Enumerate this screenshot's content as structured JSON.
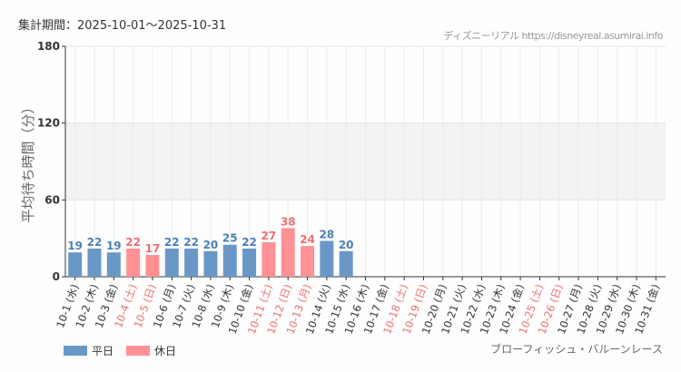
{
  "header": {
    "period": "集計期間：2025-10-01～2025-10-31",
    "credit": "ディズニーリアル https://disneyreal.asumirai.info"
  },
  "attraction": "ブローフィッシュ・バルーンレース",
  "legend": [
    {
      "label": "平日",
      "color": "#6a98c6"
    },
    {
      "label": "休日",
      "color": "#ff9195"
    }
  ],
  "chart_data": {
    "type": "bar",
    "ylabel": "平均待ち時間（分）",
    "ylim": [
      0,
      180
    ],
    "yticks": [
      0,
      60,
      120,
      180
    ],
    "grid": true,
    "categories": [
      "10-1 (水)",
      "10-2 (木)",
      "10-3 (金)",
      "10-4 (土)",
      "10-5 (日)",
      "10-6 (月)",
      "10-7 (火)",
      "10-8 (水)",
      "10-9 (木)",
      "10-10 (金)",
      "10-11 (土)",
      "10-12 (日)",
      "10-13 (月)",
      "10-14 (火)",
      "10-15 (水)",
      "10-16 (木)",
      "10-17 (金)",
      "10-18 (土)",
      "10-19 (日)",
      "10-20 (月)",
      "10-21 (火)",
      "10-22 (水)",
      "10-23 (木)",
      "10-24 (金)",
      "10-25 (土)",
      "10-26 (日)",
      "10-27 (月)",
      "10-28 (火)",
      "10-29 (水)",
      "10-30 (木)",
      "10-31 (金)"
    ],
    "holiday": [
      false,
      false,
      false,
      true,
      true,
      false,
      false,
      false,
      false,
      false,
      true,
      true,
      true,
      false,
      false,
      false,
      false,
      true,
      true,
      false,
      false,
      false,
      false,
      false,
      true,
      true,
      false,
      false,
      false,
      false,
      false
    ],
    "values": [
      19,
      22,
      19,
      22,
      17,
      22,
      22,
      20,
      25,
      22,
      27,
      38,
      24,
      28,
      20,
      null,
      null,
      null,
      null,
      null,
      null,
      null,
      null,
      null,
      null,
      null,
      null,
      null,
      null,
      null,
      null
    ],
    "colors": {
      "weekday": "#6a98c6",
      "holiday": "#ff9195",
      "weekday_text": "#4a7fb5",
      "holiday_text": "#f06d72",
      "band": "#f3f3f3"
    }
  }
}
